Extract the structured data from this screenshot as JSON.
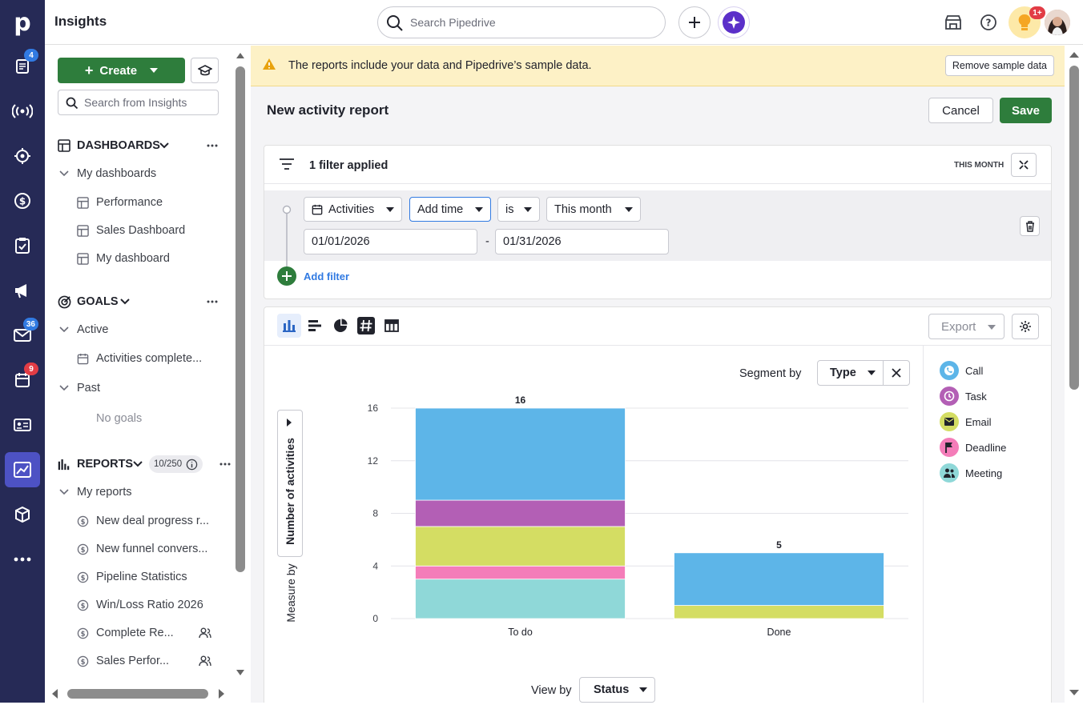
{
  "app": {
    "title": "Insights"
  },
  "nav": {
    "badges": {
      "leads": "4",
      "mail": "36",
      "calendar": "9"
    }
  },
  "topbar": {
    "search_placeholder": "Search Pipedrive",
    "notification_badge": "1+"
  },
  "sidebar": {
    "create_label": "Create",
    "search_placeholder": "Search from Insights",
    "dashboards": {
      "title": "DASHBOARDS",
      "group": "My dashboards",
      "items": [
        "Performance",
        "Sales Dashboard",
        "My dashboard"
      ]
    },
    "goals": {
      "title": "GOALS",
      "active_label": "Active",
      "active_items": [
        "Activities complete..."
      ],
      "past_label": "Past",
      "past_empty": "No goals"
    },
    "reports": {
      "title": "REPORTS",
      "count": "10/250",
      "group": "My reports",
      "items": [
        "New deal progress r...",
        "New funnel convers...",
        "Pipeline Statistics",
        "Win/Loss Ratio 2026",
        "Complete Re...",
        "Sales Perfor..."
      ]
    }
  },
  "banner": {
    "text": "The reports include your data and Pipedrive’s sample data.",
    "button": "Remove sample data"
  },
  "report": {
    "title": "New activity report",
    "cancel": "Cancel",
    "save": "Save"
  },
  "filter": {
    "applied_text": "1 filter applied",
    "period_label": "THIS MONTH",
    "entity": "Activities",
    "field": "Add time",
    "operator": "is",
    "value": "This month",
    "date_from": "01/01/2026",
    "date_sep": "-",
    "date_to": "01/31/2026",
    "add_filter": "Add filter"
  },
  "chart_toolbar": {
    "export_label": "Export"
  },
  "segment": {
    "label": "Segment by",
    "value": "Type"
  },
  "viewby": {
    "label": "View by",
    "value": "Status"
  },
  "measure": {
    "prefix": "Measure by",
    "value": "Number of activities"
  },
  "legend": [
    {
      "name": "Call",
      "color": "#5db5e8",
      "icon": "phone-icon"
    },
    {
      "name": "Task",
      "color": "#b35fb5",
      "icon": "clock-icon"
    },
    {
      "name": "Email",
      "color": "#d4dd63",
      "icon": "mail-icon"
    },
    {
      "name": "Deadline",
      "color": "#f47db9",
      "icon": "flag-icon"
    },
    {
      "name": "Meeting",
      "color": "#8fd8d8",
      "icon": "people-icon"
    }
  ],
  "chart_data": {
    "type": "bar",
    "stacked": true,
    "categories": [
      "To do",
      "Done"
    ],
    "series": [
      {
        "name": "Meeting",
        "color": "#8fd8d8",
        "values": [
          3,
          0
        ]
      },
      {
        "name": "Deadline",
        "color": "#f47db9",
        "values": [
          1,
          0
        ]
      },
      {
        "name": "Email",
        "color": "#d4dd63",
        "values": [
          3,
          1
        ]
      },
      {
        "name": "Task",
        "color": "#b35fb5",
        "values": [
          2,
          0
        ]
      },
      {
        "name": "Call",
        "color": "#5db5e8",
        "values": [
          7,
          4
        ]
      }
    ],
    "totals": [
      16,
      5
    ],
    "yticks": [
      "0",
      "4",
      "8",
      "12",
      "16"
    ],
    "ylim": [
      0,
      16
    ],
    "grid": true
  }
}
